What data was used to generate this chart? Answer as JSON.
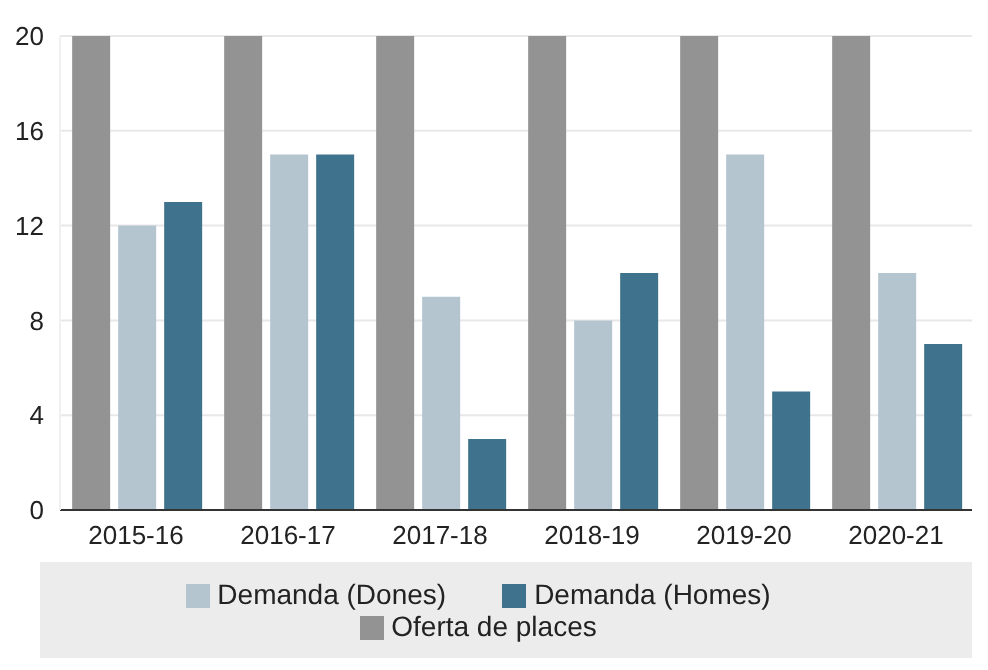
{
  "chart_data": {
    "type": "bar",
    "categories": [
      "2015-16",
      "2016-17",
      "2017-18",
      "2018-19",
      "2019-20",
      "2020-21"
    ],
    "series": [
      {
        "name": "Oferta de places",
        "color": "#939393",
        "values": [
          20,
          20,
          20,
          20,
          20,
          20
        ]
      },
      {
        "name": "Demanda (Dones)",
        "color": "#b5c5d0",
        "values": [
          12,
          15,
          9,
          8,
          15,
          10
        ]
      },
      {
        "name": "Demanda (Homes)",
        "color": "#3f728c",
        "values": [
          13,
          15,
          3,
          10,
          5,
          7
        ]
      }
    ],
    "ylim": [
      0,
      20
    ],
    "yticks": [
      0,
      4,
      8,
      12,
      16,
      20
    ],
    "grid": "y",
    "legend": "bottom"
  }
}
